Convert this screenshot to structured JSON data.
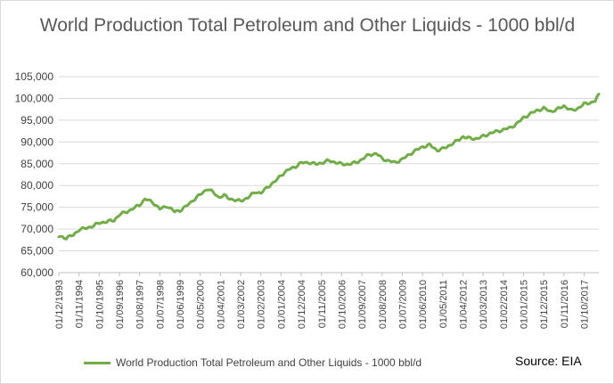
{
  "chart_data": {
    "type": "line",
    "title": "World Production Total Petroleum and Other Liquids - 1000 bbl/d",
    "xlabel": "",
    "ylabel": "",
    "ylim": [
      60000,
      105000
    ],
    "yticks": [
      60000,
      65000,
      70000,
      75000,
      80000,
      85000,
      90000,
      95000,
      100000,
      105000
    ],
    "x_start": "1993-12",
    "x_end": "2018-06",
    "x_ticks": [
      "01/12/1993",
      "01/11/1994",
      "01/10/1995",
      "01/09/1996",
      "01/08/1997",
      "01/07/1998",
      "01/06/1999",
      "01/05/2000",
      "01/04/2001",
      "01/03/2002",
      "01/02/2003",
      "01/01/2004",
      "01/12/2004",
      "01/11/2005",
      "01/10/2006",
      "01/09/2007",
      "01/08/2008",
      "01/07/2009",
      "01/06/2010",
      "01/05/2011",
      "01/04/2012",
      "01/03/2013",
      "01/02/2014",
      "01/01/2015",
      "01/12/2015",
      "01/11/2016",
      "01/10/2017"
    ],
    "grid": true,
    "legend_position": "bottom",
    "series": [
      {
        "name": "World Production Total Petroleum and Other Liquids - 1000 bbl/d",
        "color": "#70ad47",
        "anchors": [
          [
            "1993-12",
            68300
          ],
          [
            "1994-04",
            68000
          ],
          [
            "1994-08",
            68600
          ],
          [
            "1994-11",
            69900
          ],
          [
            "1995-03",
            70200
          ],
          [
            "1995-07",
            70800
          ],
          [
            "1995-10",
            71400
          ],
          [
            "1996-02",
            71700
          ],
          [
            "1996-06",
            72000
          ],
          [
            "1996-09",
            73300
          ],
          [
            "1997-01",
            74000
          ],
          [
            "1997-05",
            74800
          ],
          [
            "1997-08",
            75600
          ],
          [
            "1997-11",
            76900
          ],
          [
            "1998-03",
            76200
          ],
          [
            "1998-07",
            74600
          ],
          [
            "1998-11",
            75300
          ],
          [
            "1999-03",
            74000
          ],
          [
            "1999-06",
            74300
          ],
          [
            "1999-09",
            75100
          ],
          [
            "2000-01",
            76600
          ],
          [
            "2000-05",
            77900
          ],
          [
            "2000-09",
            79300
          ],
          [
            "2001-01",
            78100
          ],
          [
            "2001-03",
            77300
          ],
          [
            "2001-06",
            77700
          ],
          [
            "2001-09",
            77000
          ],
          [
            "2002-01",
            76500
          ],
          [
            "2002-03",
            76500
          ],
          [
            "2002-07",
            77200
          ],
          [
            "2002-11",
            78600
          ],
          [
            "2003-02",
            78200
          ],
          [
            "2003-06",
            79800
          ],
          [
            "2003-10",
            81000
          ],
          [
            "2004-01",
            82400
          ],
          [
            "2004-05",
            83600
          ],
          [
            "2004-09",
            84400
          ],
          [
            "2004-12",
            85200
          ],
          [
            "2005-04",
            85300
          ],
          [
            "2005-08",
            84900
          ],
          [
            "2005-11",
            85200
          ],
          [
            "2006-03",
            85700
          ],
          [
            "2006-07",
            85300
          ],
          [
            "2006-10",
            84900
          ],
          [
            "2007-02",
            84900
          ],
          [
            "2007-06",
            85300
          ],
          [
            "2007-09",
            86000
          ],
          [
            "2008-01",
            87100
          ],
          [
            "2008-05",
            87300
          ],
          [
            "2008-08",
            86200
          ],
          [
            "2008-11",
            85700
          ],
          [
            "2009-03",
            85300
          ],
          [
            "2009-07",
            86000
          ],
          [
            "2009-11",
            87200
          ],
          [
            "2010-03",
            88200
          ],
          [
            "2010-06",
            88900
          ],
          [
            "2010-10",
            89300
          ],
          [
            "2011-02",
            88100
          ],
          [
            "2011-05",
            88400
          ],
          [
            "2011-09",
            89300
          ],
          [
            "2012-01",
            90300
          ],
          [
            "2012-04",
            91200
          ],
          [
            "2012-08",
            90800
          ],
          [
            "2012-12",
            90800
          ],
          [
            "2013-03",
            91300
          ],
          [
            "2013-07",
            92000
          ],
          [
            "2013-11",
            92500
          ],
          [
            "2014-02",
            92800
          ],
          [
            "2014-06",
            93300
          ],
          [
            "2014-10",
            94400
          ],
          [
            "2015-01",
            95600
          ],
          [
            "2015-05",
            96500
          ],
          [
            "2015-08",
            97200
          ],
          [
            "2015-12",
            97700
          ],
          [
            "2016-04",
            97000
          ],
          [
            "2016-07",
            97400
          ],
          [
            "2016-11",
            98300
          ],
          [
            "2017-03",
            97200
          ],
          [
            "2017-06",
            97600
          ],
          [
            "2017-10",
            98700
          ],
          [
            "2018-02",
            99100
          ],
          [
            "2018-04",
            99400
          ],
          [
            "2018-06",
            101000
          ]
        ]
      }
    ]
  },
  "legend": {
    "label": "World Production Total Petroleum and Other Liquids - 1000 bbl/d"
  },
  "source_note": "Source: EIA"
}
